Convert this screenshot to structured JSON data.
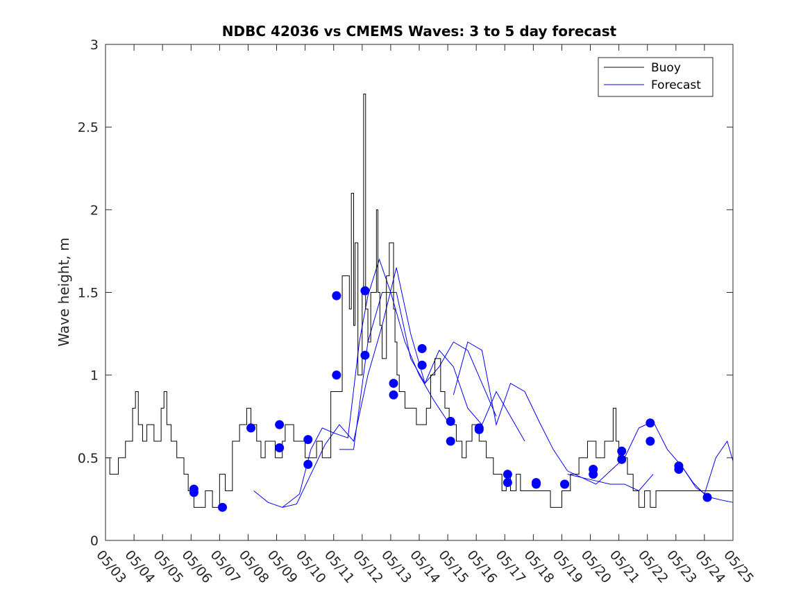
{
  "chart_data": {
    "type": "line",
    "title": "NDBC 42036 vs CMEMS Waves: 3 to 5 day forecast",
    "xlabel": "",
    "ylabel": "Wave height, m",
    "xlim": [
      0,
      22
    ],
    "ylim": [
      0,
      3
    ],
    "x_unit": "days (tick 0 = 05/03)",
    "x_tick_labels": [
      "05/03",
      "05/04",
      "05/05",
      "05/06",
      "05/07",
      "05/08",
      "05/09",
      "05/10",
      "05/11",
      "05/12",
      "05/13",
      "05/14",
      "05/15",
      "05/16",
      "05/17",
      "05/18",
      "05/19",
      "05/20",
      "05/21",
      "05/22",
      "05/23",
      "05/24",
      "05/25"
    ],
    "y_ticks": [
      0,
      0.5,
      1,
      1.5,
      2,
      2.5,
      3
    ],
    "y_tick_labels": [
      "0",
      "0.5",
      "1",
      "1.5",
      "2",
      "2.5",
      "3"
    ],
    "grid": false,
    "legend_placement": "top-right",
    "legend": [
      "Buoy",
      "Forecast"
    ],
    "colors": {
      "buoy": "#000000",
      "forecast": "#0000ff"
    },
    "series": [
      {
        "name": "Buoy",
        "style": "step",
        "x": [
          0,
          0.15,
          0.45,
          0.7,
          0.95,
          1.05,
          1.15,
          1.3,
          1.45,
          1.7,
          1.95,
          2.05,
          2.15,
          2.3,
          2.5,
          2.75,
          2.9,
          3.1,
          3.5,
          3.75,
          4.0,
          4.2,
          4.45,
          4.7,
          4.95,
          5.1,
          5.3,
          5.45,
          5.6,
          5.95,
          6.2,
          6.3,
          6.6,
          7.0,
          7.4,
          7.6,
          7.9,
          8.3,
          8.55,
          8.62,
          8.7,
          8.75,
          8.85,
          9.0,
          9.05,
          9.12,
          9.2,
          9.3,
          9.5,
          9.55,
          9.62,
          9.7,
          9.85,
          9.95,
          10.1,
          10.15,
          10.22,
          10.3,
          10.5,
          10.9,
          11.25,
          11.4,
          11.55,
          11.75,
          11.9,
          12.05,
          12.3,
          12.5,
          12.65,
          12.85,
          13.1,
          13.35,
          13.6,
          13.9,
          14.05,
          14.2,
          14.4,
          14.55,
          14.7,
          15.0,
          15.2,
          15.6,
          16.0,
          16.3,
          16.6,
          16.9,
          17.2,
          17.5,
          17.8,
          17.9,
          18.0,
          18.3,
          18.5,
          18.7,
          18.9,
          19.1,
          19.3,
          19.6,
          19.9,
          20.1,
          20.3,
          20.5,
          20.65,
          20.8,
          21.0,
          21.4,
          21.6,
          22.0
        ],
        "values": [
          0.5,
          0.4,
          0.5,
          0.6,
          0.8,
          0.9,
          0.7,
          0.6,
          0.7,
          0.6,
          0.8,
          0.9,
          0.7,
          0.6,
          0.5,
          0.4,
          0.3,
          0.2,
          0.3,
          0.2,
          0.4,
          0.3,
          0.6,
          0.7,
          0.8,
          0.7,
          0.6,
          0.5,
          0.6,
          0.5,
          0.6,
          0.7,
          0.6,
          0.5,
          0.6,
          0.5,
          0.9,
          1.6,
          1.4,
          2.1,
          1.3,
          1.8,
          1.0,
          1.5,
          2.7,
          1.4,
          1.2,
          1.5,
          2.0,
          1.5,
          1.3,
          1.1,
          1.6,
          1.8,
          1.4,
          1.2,
          1.0,
          0.9,
          0.8,
          0.7,
          0.8,
          1.0,
          1.1,
          0.9,
          0.8,
          0.7,
          0.6,
          0.5,
          0.6,
          0.7,
          0.6,
          0.5,
          0.4,
          0.3,
          0.4,
          0.3,
          0.4,
          0.3,
          0.3,
          0.3,
          0.3,
          0.2,
          0.3,
          0.4,
          0.5,
          0.6,
          0.5,
          0.6,
          0.8,
          0.6,
          0.5,
          0.4,
          0.3,
          0.2,
          0.3,
          0.2,
          0.3,
          0.3,
          0.3,
          0.3,
          0.3,
          0.3,
          0.3,
          0.3,
          0.3,
          0.3,
          0.3,
          0.3
        ]
      },
      {
        "name": "Forecast",
        "runs": [
          {
            "x": [
              5.2,
              5.7,
              6.2,
              6.8,
              7.2,
              7.6,
              8.0,
              8.5,
              8.9,
              9.2,
              9.6,
              10.0,
              10.5,
              11.0,
              11.5,
              12.0
            ],
            "values": [
              0.3,
              0.23,
              0.2,
              0.28,
              0.55,
              0.68,
              0.65,
              0.62,
              1.2,
              1.48,
              1.7,
              1.5,
              1.2,
              1.0,
              0.85,
              0.72
            ]
          },
          {
            "x": [
              6.2,
              6.7,
              7.2,
              7.7,
              8.2,
              8.7,
              9.2,
              9.7,
              10.2,
              10.7,
              11.2,
              11.7,
              12.2,
              12.7,
              13.2,
              13.7
            ],
            "values": [
              0.2,
              0.22,
              0.4,
              0.58,
              0.7,
              0.6,
              1.0,
              1.3,
              1.65,
              1.25,
              0.95,
              1.05,
              1.2,
              1.15,
              0.95,
              0.75
            ]
          },
          {
            "x": [
              8.2,
              8.7,
              9.2,
              9.7,
              10.2,
              10.7,
              11.2,
              11.7,
              12.2,
              12.7,
              13.2,
              13.7,
              14.2,
              14.7
            ],
            "values": [
              0.55,
              0.55,
              1.2,
              1.5,
              1.5,
              1.1,
              0.95,
              1.15,
              1.05,
              0.8,
              0.7,
              0.9,
              0.75,
              0.6
            ]
          },
          {
            "x": [
              12.2,
              12.7,
              13.2,
              13.7,
              14.2,
              14.7,
              15.2,
              15.7,
              16.2,
              16.7,
              17.2,
              17.7,
              18.2,
              18.7,
              19.2
            ],
            "values": [
              0.88,
              1.2,
              1.15,
              0.7,
              0.95,
              0.9,
              0.72,
              0.55,
              0.42,
              0.38,
              0.36,
              0.34,
              0.34,
              0.3,
              0.4
            ]
          },
          {
            "x": [
              16.2,
              16.7,
              17.2,
              17.7,
              18.2,
              18.7,
              19.2,
              19.7,
              20.2,
              20.7,
              21.2,
              21.7,
              22.0
            ],
            "values": [
              0.4,
              0.38,
              0.34,
              0.42,
              0.5,
              0.68,
              0.72,
              0.55,
              0.45,
              0.32,
              0.26,
              0.24,
              0.23
            ]
          },
          {
            "x": [
              20.2,
              20.6,
              21.0,
              21.4,
              21.8,
              22.0
            ],
            "values": [
              0.45,
              0.35,
              0.28,
              0.5,
              0.6,
              0.48
            ]
          }
        ]
      }
    ],
    "markers": {
      "name": "Forecast init points",
      "x": [
        3.1,
        3.1,
        4.1,
        5.1,
        6.1,
        6.1,
        7.1,
        7.1,
        8.1,
        8.1,
        9.1,
        9.1,
        10.1,
        10.1,
        11.1,
        11.1,
        12.1,
        12.1,
        13.1,
        13.1,
        14.1,
        14.1,
        15.1,
        15.1,
        16.1,
        16.1,
        17.1,
        17.1,
        18.1,
        18.1,
        19.1,
        19.1,
        20.1,
        20.1,
        21.1
      ],
      "values": [
        0.31,
        0.29,
        0.2,
        0.68,
        0.7,
        0.56,
        0.61,
        0.46,
        1.48,
        1.0,
        1.51,
        1.12,
        0.95,
        0.88,
        1.16,
        1.06,
        0.72,
        0.6,
        0.68,
        0.67,
        0.4,
        0.35,
        0.35,
        0.34,
        0.34,
        0.34,
        0.43,
        0.4,
        0.54,
        0.49,
        0.71,
        0.6,
        0.45,
        0.43,
        0.26
      ]
    }
  }
}
